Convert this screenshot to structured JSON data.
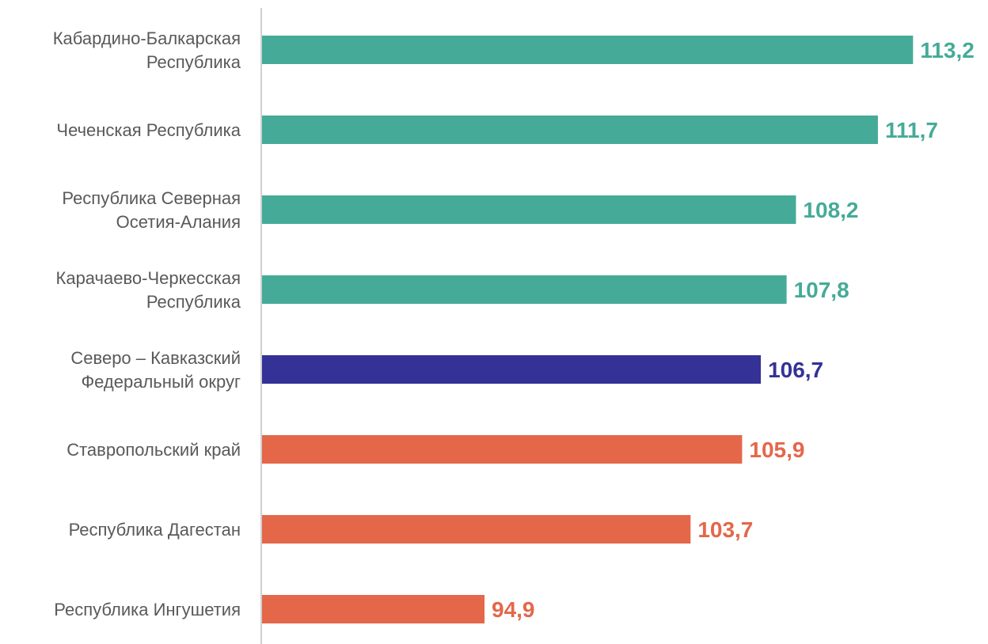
{
  "chart_data": {
    "type": "bar",
    "orientation": "horizontal",
    "title": "",
    "xlabel": "",
    "ylabel": "",
    "grid": false,
    "legend": "none",
    "categories": [
      [
        "Кабардино-Балкарская",
        "Республика"
      ],
      [
        "Чеченская Республика"
      ],
      [
        "Республика Северная",
        "Осетия-Алания"
      ],
      [
        "Карачаево-Черкесская",
        "Республика"
      ],
      [
        "Северо – Кавказский",
        "Федеральный округ"
      ],
      [
        "Ставропольский  край"
      ],
      [
        "Республика Дагестан"
      ],
      [
        "Республика Ингушетия"
      ]
    ],
    "values": [
      113.2,
      111.7,
      108.2,
      107.8,
      106.7,
      105.9,
      103.7,
      94.9
    ],
    "value_labels": [
      "113,2",
      "111,7",
      "108,2",
      "107,8",
      "106,7",
      "105,9",
      "103,7",
      "94,9"
    ],
    "bar_colors": [
      "#45AB98",
      "#45AB98",
      "#45AB98",
      "#45AB98",
      "#343296",
      "#E4674A",
      "#E4674A",
      "#E4674A"
    ],
    "xlim": [
      85.4,
      114
    ]
  }
}
